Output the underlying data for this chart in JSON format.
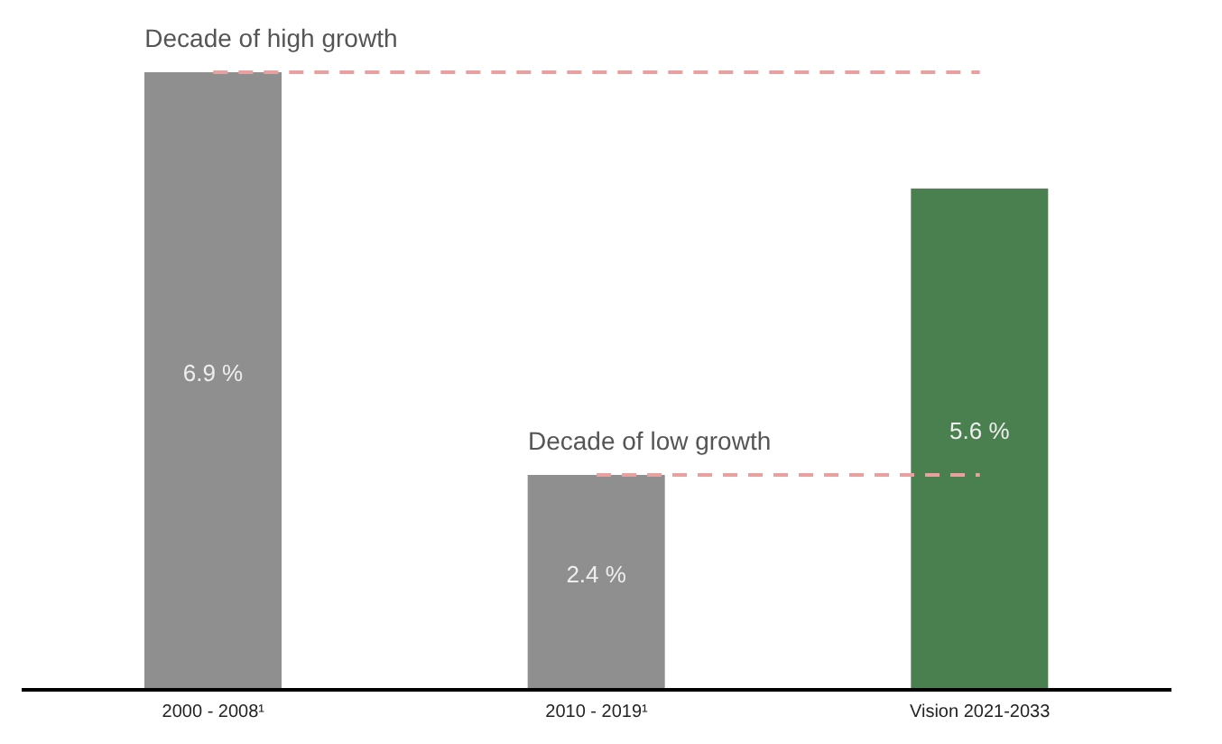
{
  "chart_data": {
    "type": "bar",
    "categories": [
      "2000 - 2008¹",
      "2010 - 2019¹",
      "Vision 2021-2033"
    ],
    "values": [
      6.9,
      2.4,
      5.6
    ],
    "colors": [
      "#8f8f8f",
      "#8f8f8f",
      "#4a7f50"
    ],
    "value_labels": [
      "6.9 %",
      "2.4 %",
      "5.6 %"
    ],
    "ref_lines": [
      {
        "axis": "y",
        "value": 6.9,
        "color": "#e8a0a0",
        "line_style": "dashed"
      },
      {
        "axis": "y",
        "value": 2.4,
        "color": "#e8a0a0",
        "line_style": "dashed"
      }
    ],
    "annotations": [
      {
        "text": "Decade of high growth",
        "x": "2000 - 2008¹",
        "y": 6.9
      },
      {
        "text": "Decade of low growth",
        "x": "2010 - 2019¹",
        "y": 2.4
      }
    ]
  }
}
